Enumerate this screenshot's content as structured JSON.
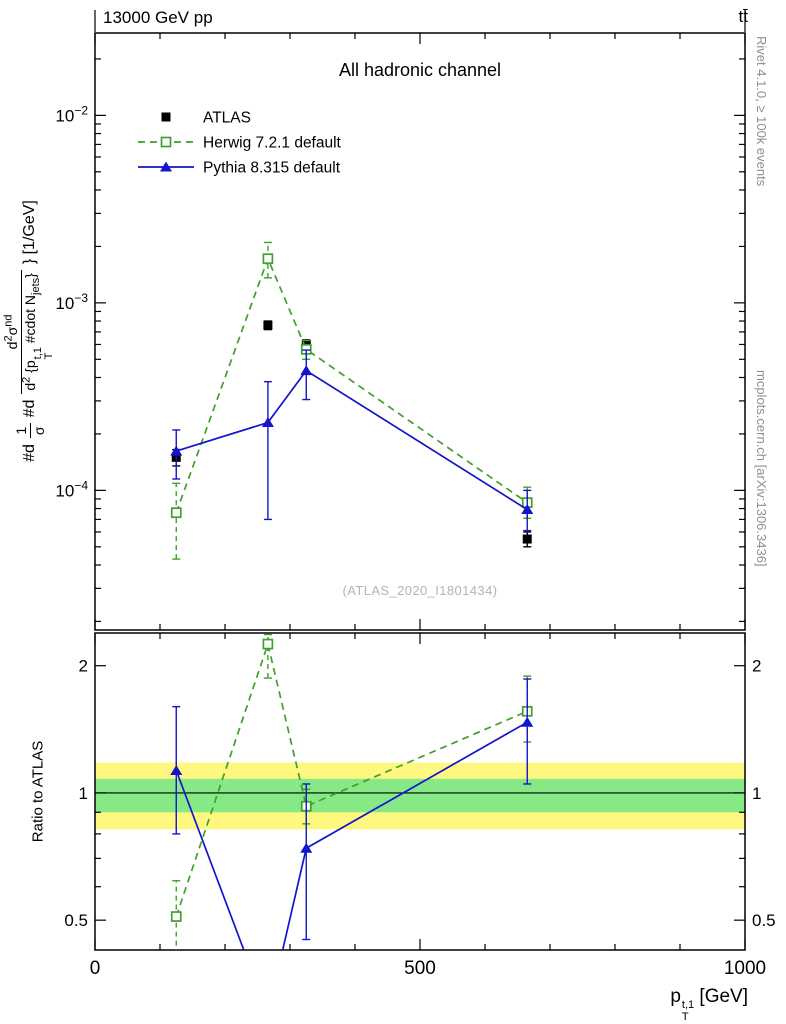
{
  "header": {
    "left": "13000 GeV pp",
    "right": "tt̄"
  },
  "titles": {
    "watermark": "(ATLAS_2020_I1801434)",
    "rivet_side": "Rivet 4.1.0, ≥ 100k events",
    "mcplots_side": "mcplots.cern.ch [arXiv:1306.3436]"
  },
  "axis_labels": {
    "x": {
      "a": "p",
      "sup": "t,1",
      "sub": "T",
      "b": " [GeV]"
    },
    "ratio_y": "Ratio to ATLAS",
    "main_y": {
      "pre": "#d",
      "f1_num": "1",
      "f1_den": "σ",
      "mid": "#d",
      "f2_num_a": "d",
      "f2_num_sup_a": "2",
      "f2_num_b": "σ",
      "f2_num_sup_b": "nd",
      "f2_den_a": "d",
      "f2_den_sup": "2",
      "f2_den_b": " {p",
      "f2_den_p_sup": "t,1",
      "f2_den_p_sub": "T",
      "f2_den_c": " #cdot N",
      "f2_den_sub": "jets",
      "f2_den_d": "}",
      "suffix": "} [1/GeV]"
    }
  },
  "colors": {
    "atlas": "#000000",
    "herwig": "#3fa02a",
    "pythia": "#1414cc",
    "band_yellow": "#fff880",
    "band_green": "#86e986",
    "side_text": "#8f8f8f",
    "watermark": "#b4b4b4"
  },
  "chart_data": {
    "type": "line",
    "title": "All hadronic channel",
    "xlabel": "p_T^{t,1} [GeV]",
    "ylabel": "#d 1/σ #d d²σ^nd / d²{p_T^{t,1} #cdot N_jets} } [1/GeV]",
    "ratio_ylabel": "Ratio to ATLAS",
    "legend_position": "top-left",
    "x_axis": {
      "min": 0,
      "max": 1000,
      "major_ticks": [
        0,
        500,
        1000
      ],
      "minor_step": 100
    },
    "main_panel": {
      "y_scale": "log",
      "ylim": [
        1.8e-05,
        0.0275
      ],
      "major_ticks": [
        0.01,
        0.001,
        0.0001
      ],
      "series": [
        {
          "name": "ATLAS",
          "color": "atlas",
          "marker": "filled-square",
          "line": "none",
          "x": [
            125,
            266,
            325,
            665
          ],
          "y": [
            0.00015,
            0.00076,
            0.0006,
            5.5e-05
          ],
          "y_lo": [
            0.000135,
            0.00072,
            0.000565,
            5e-05
          ],
          "y_hi": [
            0.000165,
            0.0008,
            0.000635,
            6e-05
          ]
        },
        {
          "name": "Herwig 7.2.1 default",
          "color": "herwig",
          "marker": "open-square",
          "line": "dashed",
          "x": [
            125,
            266,
            325,
            665
          ],
          "y": [
            7.6e-05,
            0.00172,
            0.000565,
            8.6e-05
          ],
          "y_lo": [
            4.3e-05,
            0.00136,
            0.0005,
            7.1e-05
          ],
          "y_hi": [
            0.000109,
            0.0021,
            0.00063,
            0.000104
          ]
        },
        {
          "name": "Pythia 8.315 default",
          "color": "pythia",
          "marker": "filled-triangle",
          "line": "solid",
          "x": [
            125,
            266,
            325,
            665
          ],
          "y": [
            0.000162,
            0.00023,
            0.000435,
            7.9e-05
          ],
          "y_lo": [
            0.000115,
            7e-05,
            0.000305,
            6.1e-05
          ],
          "y_hi": [
            0.00021,
            0.00038,
            0.00056,
            0.0001
          ]
        }
      ]
    },
    "ratio_panel": {
      "y_scale": "log",
      "ylim": [
        0.425,
        2.39
      ],
      "major_ticks": [
        0.5,
        1,
        2
      ],
      "minor_ticks": [
        0.6,
        0.7,
        0.8,
        0.9
      ],
      "reference": 1,
      "bands": {
        "yellow": [
          0.82,
          1.18
        ],
        "green": [
          0.9,
          1.08
        ]
      },
      "series": [
        {
          "name": "Herwig 7.2.1 default",
          "color": "herwig",
          "marker": "open-square",
          "line": "dashed",
          "x": [
            125,
            266,
            325,
            665
          ],
          "y": [
            0.51,
            2.25,
            0.93,
            1.56
          ],
          "y_lo": [
            0.28,
            1.87,
            0.845,
            1.32
          ],
          "y_hi": [
            0.62,
            2.37,
            1.02,
            1.89
          ]
        },
        {
          "name": "Pythia 8.315 default",
          "color": "pythia",
          "marker": "filled-triangle",
          "line": "solid",
          "x": [
            125,
            266,
            325,
            665
          ],
          "y": [
            1.13,
            0.3,
            0.74,
            1.47
          ],
          "y_lo": [
            0.8,
            0.3,
            0.45,
            1.05
          ],
          "y_hi": [
            1.6,
            0.3,
            1.05,
            1.86
          ]
        }
      ]
    }
  }
}
